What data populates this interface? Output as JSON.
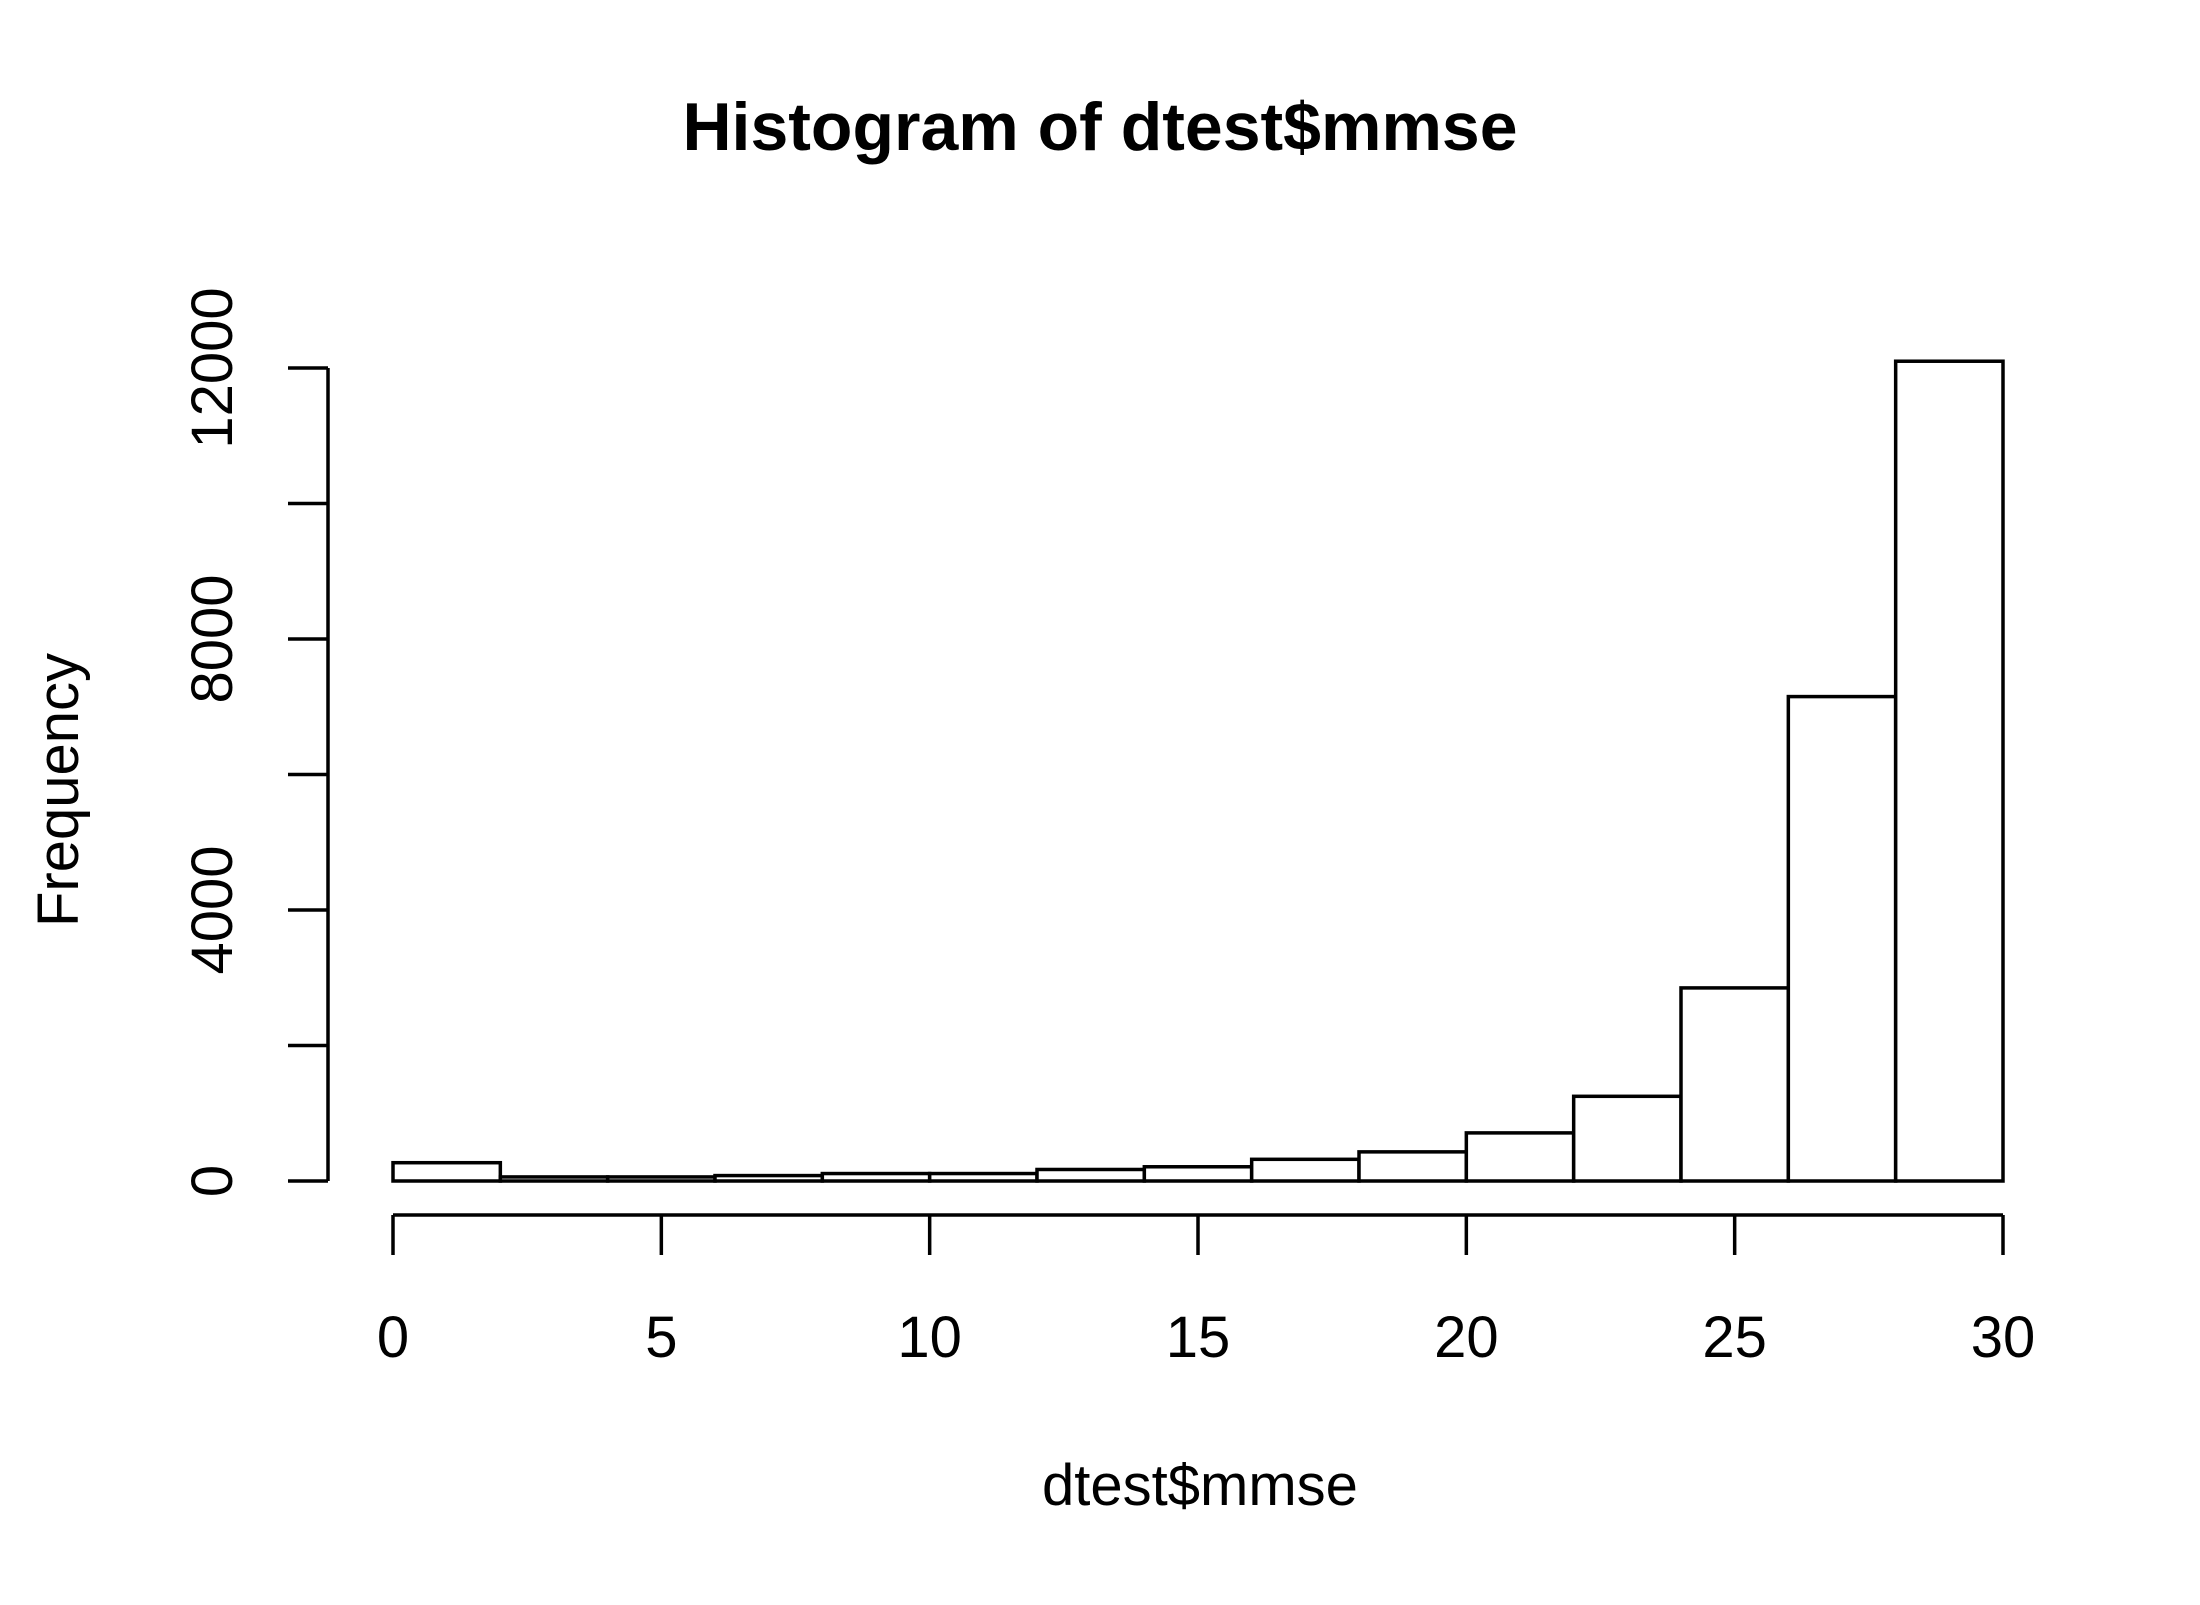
{
  "chart_data": {
    "type": "bar",
    "title": "Histogram of dtest$mmse",
    "xlabel": "dtest$mmse",
    "ylabel": "Frequency",
    "bins": [
      {
        "start": 0,
        "end": 2,
        "count": 270
      },
      {
        "start": 2,
        "end": 4,
        "count": 60
      },
      {
        "start": 4,
        "end": 6,
        "count": 60
      },
      {
        "start": 6,
        "end": 8,
        "count": 80
      },
      {
        "start": 8,
        "end": 10,
        "count": 110
      },
      {
        "start": 10,
        "end": 12,
        "count": 110
      },
      {
        "start": 12,
        "end": 14,
        "count": 170
      },
      {
        "start": 14,
        "end": 16,
        "count": 210
      },
      {
        "start": 16,
        "end": 18,
        "count": 320
      },
      {
        "start": 18,
        "end": 20,
        "count": 430
      },
      {
        "start": 20,
        "end": 22,
        "count": 710
      },
      {
        "start": 22,
        "end": 24,
        "count": 1250
      },
      {
        "start": 24,
        "end": 26,
        "count": 2850
      },
      {
        "start": 26,
        "end": 28,
        "count": 7150
      },
      {
        "start": 28,
        "end": 30,
        "count": 12100
      }
    ],
    "xlim": [
      0,
      30
    ],
    "ylim": [
      0,
      12000
    ],
    "x_ticks": [
      {
        "value": 0,
        "label": "0"
      },
      {
        "value": 5,
        "label": "5"
      },
      {
        "value": 10,
        "label": "10"
      },
      {
        "value": 15,
        "label": "15"
      },
      {
        "value": 20,
        "label": "20"
      },
      {
        "value": 25,
        "label": "25"
      },
      {
        "value": 30,
        "label": "30"
      }
    ],
    "y_ticks": [
      {
        "value": 0,
        "label": "0"
      },
      {
        "value": 2000,
        "label": ""
      },
      {
        "value": 4000,
        "label": "4000"
      },
      {
        "value": 6000,
        "label": ""
      },
      {
        "value": 8000,
        "label": "8000"
      },
      {
        "value": 10000,
        "label": ""
      },
      {
        "value": 12000,
        "label": "12000"
      }
    ],
    "grid": false,
    "legend": "none",
    "colors": {
      "bar_fill": "#ffffff",
      "bar_stroke": "#000000",
      "background": "#ffffff"
    }
  }
}
